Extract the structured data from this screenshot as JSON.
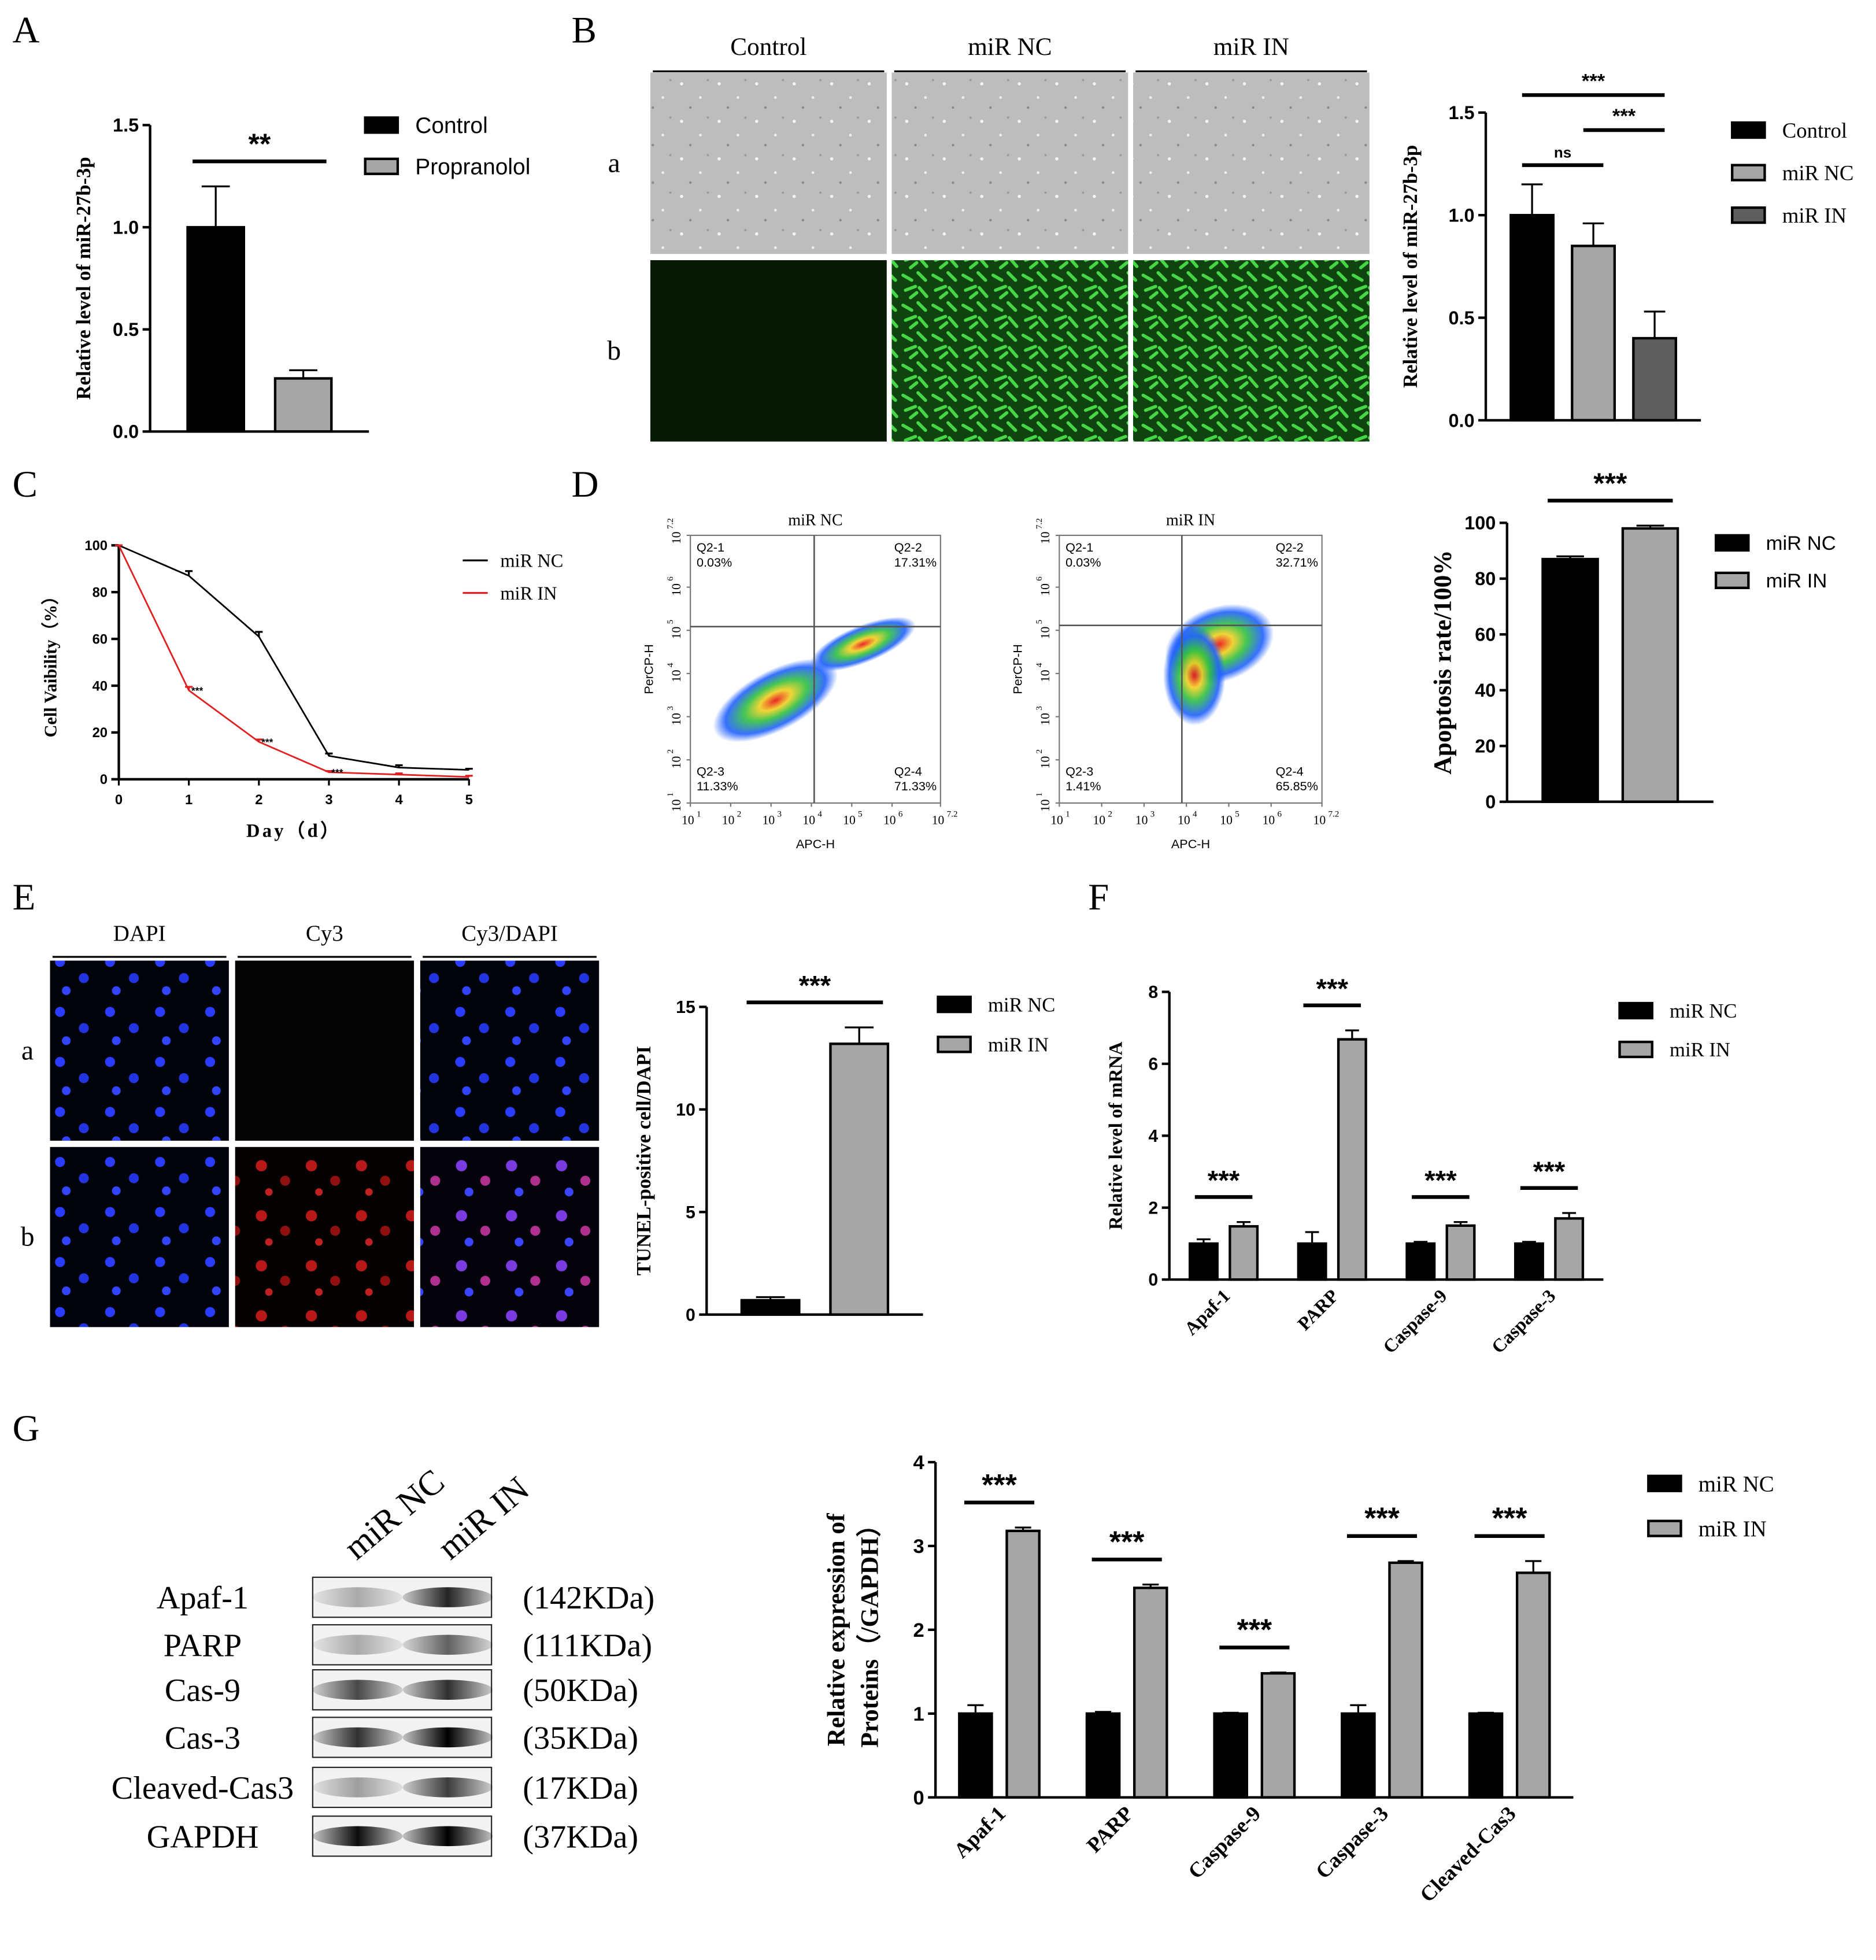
{
  "panels": {
    "letters": [
      "A",
      "B",
      "C",
      "D",
      "E",
      "F",
      "G"
    ],
    "B_images": {
      "columns": [
        "Control",
        "miR NC",
        "miR IN"
      ],
      "rows": [
        "a",
        "b"
      ]
    },
    "E_images": {
      "columns": [
        "DAPI",
        "Cy3",
        "Cy3/DAPI"
      ],
      "rows": [
        "a",
        "b"
      ]
    },
    "D_flow": {
      "tick_base": "10",
      "tick_exponents": [
        1,
        2,
        3,
        4,
        5,
        6,
        7.2
      ],
      "xlabel": "APC-H",
      "ylabel": "PerCP-H",
      "plots": [
        {
          "title": "miR NC",
          "quadrants": [
            [
              "Q2-1",
              "0.03%"
            ],
            [
              "Q2-2",
              "17.31%"
            ],
            [
              "Q2-3",
              "11.33%"
            ],
            [
              "Q2-4",
              "71.33%"
            ]
          ]
        },
        {
          "title": "miR IN",
          "quadrants": [
            [
              "Q2-1",
              "0.03%"
            ],
            [
              "Q2-2",
              "32.71%"
            ],
            [
              "Q2-3",
              "1.41%"
            ],
            [
              "Q2-4",
              "65.85%"
            ]
          ]
        }
      ]
    },
    "G_blot": {
      "lanes": [
        "miR NC",
        "miR IN"
      ],
      "rows": [
        [
          "Apaf-1",
          "(142KDa)"
        ],
        [
          "PARP",
          "(111KDa)"
        ],
        [
          "Cas-9",
          "(50KDa)"
        ],
        [
          "Cas-3",
          "(35KDa)"
        ],
        [
          "Cleaved-Cas3",
          "(17KDa)"
        ],
        [
          "GAPDH",
          "(37KDa)"
        ]
      ]
    }
  },
  "chart_data": [
    {
      "type": "bar",
      "ylabel": "Relative level of miR-27b-3p",
      "categories": [
        null
      ],
      "series": [
        {
          "name": "Control",
          "color": "#000000",
          "values": [
            1.0
          ],
          "errors": [
            0.2
          ]
        },
        {
          "name": "Propranolol",
          "color": "#a6a6a6",
          "values": [
            0.26
          ],
          "errors": [
            0.04
          ]
        }
      ],
      "ylim": [
        0,
        1.5
      ],
      "yticks": [
        {
          "value": 0,
          "label": "0.0"
        },
        0.5,
        {
          "value": 1,
          "label": "1.0"
        },
        1.5
      ],
      "annotations": [
        "**"
      ]
    },
    {
      "type": "bar",
      "ylabel": "Relative level of miR-27b-3p",
      "categories": [
        null
      ],
      "series": [
        {
          "name": "Control",
          "color": "#000000",
          "values": [
            1.0
          ],
          "errors": [
            0.15
          ]
        },
        {
          "name": "miR NC",
          "color": "#a6a6a6",
          "values": [
            0.85
          ],
          "errors": [
            0.11
          ]
        },
        {
          "name": "miR IN",
          "color": "#5e5e5e",
          "values": [
            0.4
          ],
          "errors": [
            0.13
          ]
        }
      ],
      "ylim": [
        0,
        1.5
      ],
      "yticks": [
        {
          "value": 0,
          "label": "0.0"
        },
        0.5,
        {
          "value": 1,
          "label": "1.0"
        },
        1.5
      ],
      "annotations": [
        "ns",
        "***",
        "***"
      ]
    },
    {
      "type": "line",
      "xlabel": "Day（d）",
      "ylabel": "Cell Vaibility（%）",
      "x": [
        0,
        1,
        2,
        3,
        4,
        5
      ],
      "series": [
        {
          "name": "miR NC",
          "color": "#000000",
          "values": [
            100,
            87,
            61,
            10,
            5,
            4
          ],
          "errors": [
            0,
            2,
            2,
            1,
            1,
            0.5
          ]
        },
        {
          "name": "miR IN",
          "color": "#e02020",
          "values": [
            100,
            38,
            16,
            3,
            2,
            1
          ],
          "errors": [
            0,
            1.5,
            1,
            0.5,
            0.5,
            0.5
          ]
        }
      ],
      "xlim": [
        0,
        5
      ],
      "xticks": [
        0,
        1,
        2,
        3,
        4,
        5
      ],
      "ylim": [
        0,
        100
      ],
      "yticks": [
        0,
        20,
        40,
        60,
        80,
        100
      ],
      "annotations": [
        "***",
        "***",
        "***"
      ]
    },
    {
      "type": "bar",
      "ylabel": "Apoptosis rate/100%",
      "categories": [
        null
      ],
      "series": [
        {
          "name": "miR NC",
          "color": "#000000",
          "values": [
            87
          ],
          "errors": [
            1
          ]
        },
        {
          "name": "miR IN",
          "color": "#a6a6a6",
          "values": [
            98
          ],
          "errors": [
            1
          ]
        }
      ],
      "ylim": [
        0,
        100
      ],
      "yticks": [
        0,
        20,
        40,
        60,
        80,
        100
      ],
      "annotations": [
        "***"
      ]
    },
    {
      "type": "bar",
      "ylabel": "TUNEL-positive cell/DAPI",
      "categories": [
        null
      ],
      "series": [
        {
          "name": "miR NC",
          "color": "#000000",
          "values": [
            0.7
          ],
          "errors": [
            0.15
          ]
        },
        {
          "name": "miR IN",
          "color": "#a6a6a6",
          "values": [
            13.2
          ],
          "errors": [
            0.8
          ]
        }
      ],
      "ylim": [
        0,
        15
      ],
      "yticks": [
        0,
        5,
        10,
        15
      ],
      "annotations": [
        "***"
      ]
    },
    {
      "type": "bar",
      "ylabel": "Relative level of mRNA",
      "categories": [
        "Apaf-1",
        "PARP",
        "Caspase-9",
        "Caspase-3"
      ],
      "series": [
        {
          "name": "miR NC",
          "color": "#000000",
          "values": [
            1,
            1,
            1,
            1
          ],
          "errors": [
            0.12,
            0.32,
            0.05,
            0.05
          ]
        },
        {
          "name": "miR IN",
          "color": "#a6a6a6",
          "values": [
            1.48,
            6.68,
            1.5,
            1.7
          ],
          "errors": [
            0.12,
            0.25,
            0.1,
            0.15
          ]
        }
      ],
      "ylim": [
        0,
        8
      ],
      "yticks": [
        0,
        2,
        4,
        6,
        8
      ],
      "annotations": [
        "***",
        "***",
        "***",
        "***"
      ]
    },
    {
      "type": "bar",
      "ylabel": [
        "Relative expression of",
        "Proteins（/GAPDH）"
      ],
      "categories": [
        "Apaf-1",
        "PARP",
        "Caspase-9",
        "Caspase-3",
        "Cleaved-Cas3"
      ],
      "series": [
        {
          "name": "miR NC",
          "color": "#000000",
          "values": [
            1,
            1,
            1,
            1,
            1
          ],
          "errors": [
            0.1,
            0.02,
            0.01,
            0.1,
            0.01
          ]
        },
        {
          "name": "miR IN",
          "color": "#a6a6a6",
          "values": [
            3.18,
            2.5,
            1.48,
            2.8,
            2.68
          ],
          "errors": [
            0.04,
            0.04,
            0.01,
            0.02,
            0.14
          ]
        }
      ],
      "ylim": [
        0,
        4
      ],
      "yticks": [
        0,
        1,
        2,
        3,
        4
      ],
      "annotations": [
        "***",
        "***",
        "***",
        "***",
        "***"
      ]
    }
  ]
}
